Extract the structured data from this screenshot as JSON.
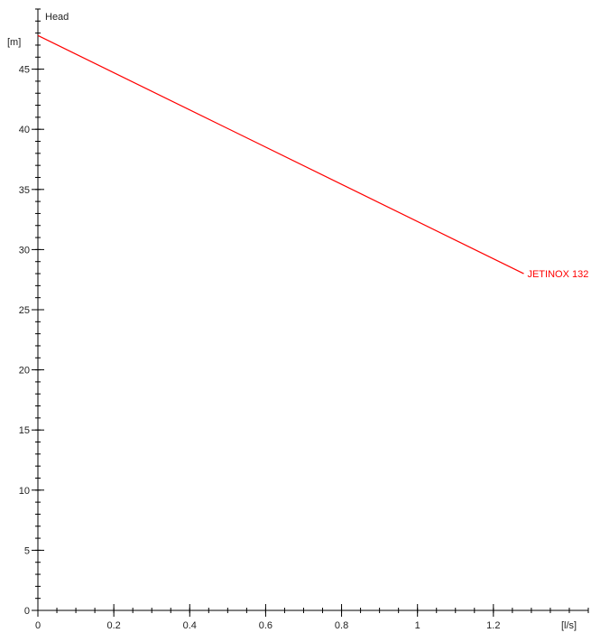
{
  "chart_data": {
    "type": "line",
    "y_title": "Head",
    "ylabel": "[m]",
    "xlabel": "[l/s]",
    "xlim": [
      0,
      1.45
    ],
    "ylim": [
      0,
      50
    ],
    "x_ticks": [
      0,
      0.2,
      0.4,
      0.6,
      0.8,
      1,
      1.2
    ],
    "x_tick_labels": [
      "0",
      "0.2",
      "0.4",
      "0.6",
      "0.8",
      "1",
      "1.2"
    ],
    "y_ticks": [
      0,
      5,
      10,
      15,
      20,
      25,
      30,
      35,
      40,
      45
    ],
    "y_tick_labels": [
      "0",
      "5",
      "10",
      "15",
      "20",
      "25",
      "30",
      "35",
      "40",
      "45"
    ],
    "x_minor_step": 0.05,
    "y_minor_step": 1,
    "grid": false,
    "series": [
      {
        "name": "JETINOX 132",
        "color": "#ff0000",
        "x": [
          0,
          1.28
        ],
        "y": [
          47.8,
          28
        ]
      }
    ]
  }
}
